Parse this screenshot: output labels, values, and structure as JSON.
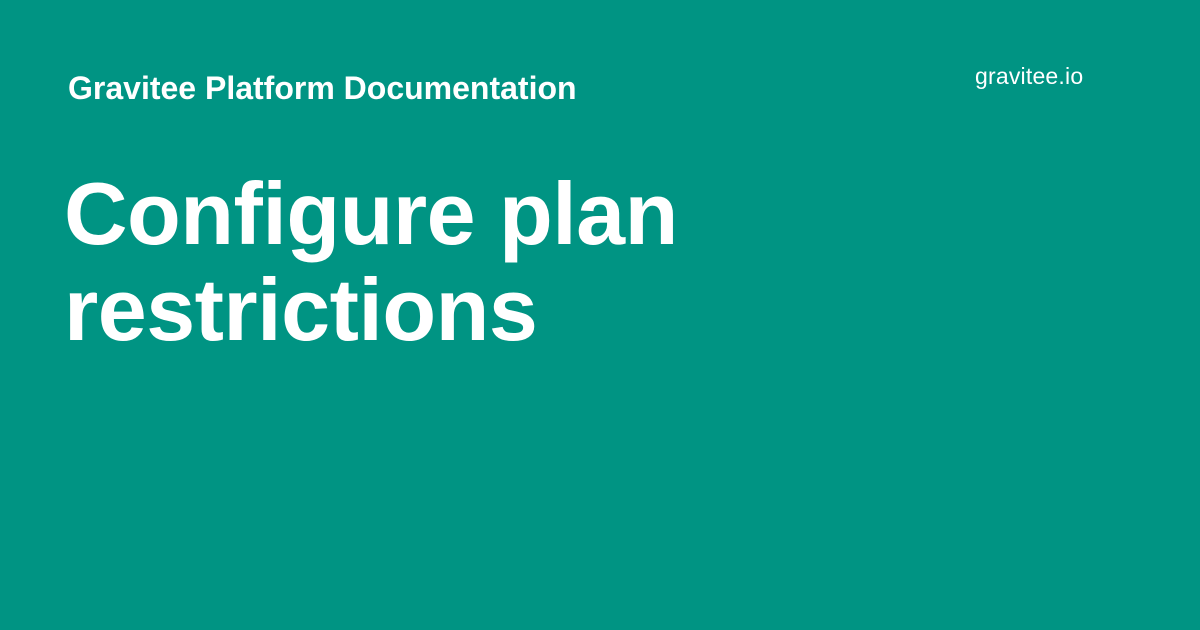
{
  "header": {
    "site_name": "Gravitee Platform Documentation"
  },
  "logo": {
    "text": "gravitee.io"
  },
  "main": {
    "title": "Configure plan restrictions"
  },
  "colors": {
    "background": "#009483",
    "text": "#ffffff"
  }
}
